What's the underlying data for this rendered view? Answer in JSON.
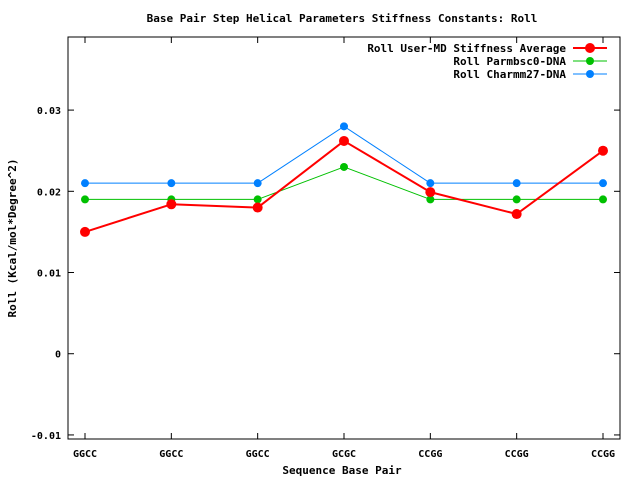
{
  "chart_data": {
    "type": "line",
    "title": "Base Pair Step Helical Parameters Stiffness Constants: Roll",
    "xlabel": "Sequence Base Pair",
    "ylabel": "Roll (Kcal/mol*Degree^2)",
    "categories": [
      "GGCC",
      "GGCC",
      "GGCC",
      "GCGC",
      "CCGG",
      "CCGG",
      "CCGG"
    ],
    "ylim": [
      -0.0105,
      0.039
    ],
    "yticks": [
      {
        "value": 0.03,
        "label": "0.03"
      },
      {
        "value": 0.02,
        "label": "0.02"
      },
      {
        "value": 0.01,
        "label": "0.01"
      },
      {
        "value": 0,
        "label": "0"
      },
      {
        "value": -0.01,
        "label": "-0.01"
      }
    ],
    "grid": false,
    "legend_position": "top-right",
    "series": [
      {
        "name": "Roll User-MD Stiffness Average",
        "color": "#ff0000",
        "line_width": 2,
        "marker": "large",
        "values": [
          0.015,
          0.0184,
          0.018,
          0.0262,
          0.0199,
          0.0172,
          0.025
        ]
      },
      {
        "name": "Roll Parmbsc0-DNA",
        "color": "#00c000",
        "line_width": 1,
        "marker": "medium",
        "values": [
          0.019,
          0.019,
          0.019,
          0.023,
          0.019,
          0.019,
          0.019
        ]
      },
      {
        "name": "Roll Charmm27-DNA",
        "color": "#0080ff",
        "line_width": 1,
        "marker": "medium",
        "values": [
          0.021,
          0.021,
          0.021,
          0.028,
          0.021,
          0.021,
          0.021
        ]
      }
    ]
  }
}
